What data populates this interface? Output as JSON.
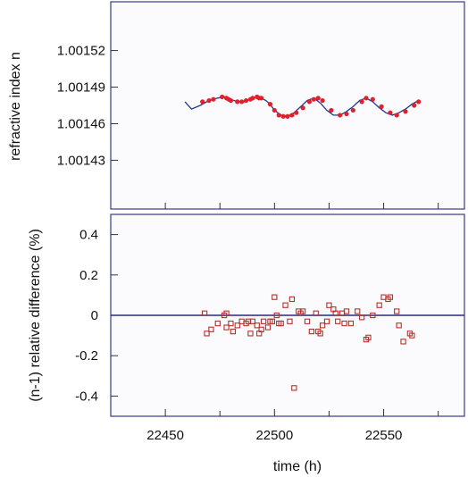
{
  "chart_data": [
    {
      "type": "line",
      "ylabel": "refractive index n",
      "xlim": [
        22425,
        22587
      ],
      "ylim": [
        1.00139,
        1.00156
      ],
      "yticks": [
        "1.00152",
        "1.00149",
        "1.00146",
        "1.00143"
      ],
      "ytick_values": [
        1.00152,
        1.00149,
        1.00146,
        1.00143
      ],
      "xticks_unlabeled": [
        22450,
        22475,
        22500,
        22525,
        22550,
        22575
      ],
      "grid": false,
      "colors": {
        "line": "#1f3a93",
        "markers": "#e0202a",
        "frame": "#3a3a8c"
      },
      "series": [
        {
          "style": "line",
          "x": [
            22459,
            22462,
            22466,
            22470,
            22474,
            22477,
            22480,
            22483,
            22486,
            22489,
            22492,
            22494,
            22496,
            22498,
            22500,
            22503,
            22506,
            22509,
            22512,
            22515,
            22518,
            22521,
            22524,
            22527,
            22530,
            22533,
            22536,
            22539,
            22542,
            22545,
            22548,
            22551,
            22554,
            22557,
            22560,
            22563,
            22566
          ],
          "y": [
            1.001478,
            1.001472,
            1.001475,
            1.001479,
            1.001481,
            1.001482,
            1.00148,
            1.001478,
            1.001478,
            1.00148,
            1.001482,
            1.001481,
            1.001479,
            1.001476,
            1.001471,
            1.001467,
            1.001466,
            1.001469,
            1.001474,
            1.001479,
            1.001481,
            1.001477,
            1.001471,
            1.001467,
            1.001467,
            1.00147,
            1.001474,
            1.001479,
            1.001481,
            1.001478,
            1.001473,
            1.001469,
            1.001467,
            1.001469,
            1.001472,
            1.001476,
            1.001479
          ]
        },
        {
          "style": "markers",
          "x": [
            22467,
            22470,
            22472,
            22476,
            22478,
            22479,
            22480,
            22483,
            22485,
            22487,
            22489,
            22490,
            22492,
            22493,
            22494,
            22498,
            22500,
            22502,
            22504,
            22506,
            22508,
            22510,
            22513,
            22516,
            22518,
            22520,
            22522,
            22526,
            22530,
            22533,
            22536,
            22540,
            22542,
            22545,
            22549,
            22553,
            22556,
            22560,
            22564,
            22566
          ],
          "y": [
            1.001478,
            1.001479,
            1.00148,
            1.001482,
            1.001481,
            1.00148,
            1.001479,
            1.001478,
            1.001478,
            1.001479,
            1.00148,
            1.001481,
            1.001482,
            1.001481,
            1.001481,
            1.001476,
            1.001471,
            1.001467,
            1.001466,
            1.001466,
            1.001467,
            1.001469,
            1.001473,
            1.001478,
            1.00148,
            1.001481,
            1.001479,
            1.001471,
            1.001467,
            1.001468,
            1.001471,
            1.001478,
            1.001481,
            1.00148,
            1.001474,
            1.001469,
            1.001467,
            1.00147,
            1.001475,
            1.001478
          ]
        }
      ]
    },
    {
      "type": "scatter",
      "xlabel": "time (h)",
      "ylabel": "(n-1) relative difference (%)",
      "xlim": [
        22425,
        22587
      ],
      "ylim": [
        -0.5,
        0.5
      ],
      "xticks": [
        "22450",
        "22500",
        "22550"
      ],
      "xtick_values": [
        22450,
        22500,
        22550
      ],
      "xticks_unlabeled": [
        22475,
        22525,
        22575
      ],
      "yticks": [
        "0.4",
        "0.2",
        "0",
        "-0.2",
        "-0.4"
      ],
      "ytick_values": [
        0.4,
        0.2,
        0,
        -0.2,
        -0.4
      ],
      "zero_line": 0,
      "grid": false,
      "colors": {
        "markers": "#b5322a",
        "zero_line": "#2a2a7a",
        "frame": "#3a3a8c"
      },
      "x": [
        22468,
        22469,
        22471,
        22474,
        22477,
        22478,
        22478,
        22480,
        22481,
        22483,
        22485,
        22487,
        22488,
        22489,
        22490,
        22492,
        22493,
        22494,
        22495,
        22497,
        22498,
        22499,
        22500,
        22501,
        22502,
        22503,
        22505,
        22507,
        22508,
        22509,
        22511,
        22512,
        22513,
        22515,
        22517,
        22519,
        22520,
        22521,
        22522,
        22524,
        22525,
        22527,
        22528,
        22529,
        22531,
        22532,
        22533,
        22535,
        22538,
        22540,
        22542,
        22543,
        22545,
        22548,
        22550,
        22552,
        22553,
        22556,
        22557,
        22559,
        22562,
        22563
      ],
      "y": [
        0.01,
        -0.09,
        -0.07,
        -0.04,
        0.0,
        -0.06,
        0.01,
        -0.04,
        -0.08,
        -0.05,
        -0.03,
        -0.04,
        -0.03,
        -0.09,
        -0.03,
        -0.05,
        -0.09,
        -0.07,
        -0.03,
        -0.06,
        -0.03,
        -0.03,
        0.09,
        0.0,
        -0.04,
        -0.04,
        0.05,
        -0.03,
        0.08,
        -0.36,
        0.02,
        0.01,
        0.02,
        -0.03,
        -0.08,
        0.01,
        -0.08,
        -0.09,
        -0.05,
        -0.03,
        0.05,
        0.03,
        0.01,
        -0.03,
        0.01,
        -0.04,
        0.02,
        -0.04,
        0.02,
        -0.01,
        -0.12,
        -0.11,
        0.0,
        0.05,
        0.09,
        0.08,
        0.09,
        0.02,
        -0.05,
        -0.13,
        -0.09,
        -0.1
      ]
    }
  ]
}
